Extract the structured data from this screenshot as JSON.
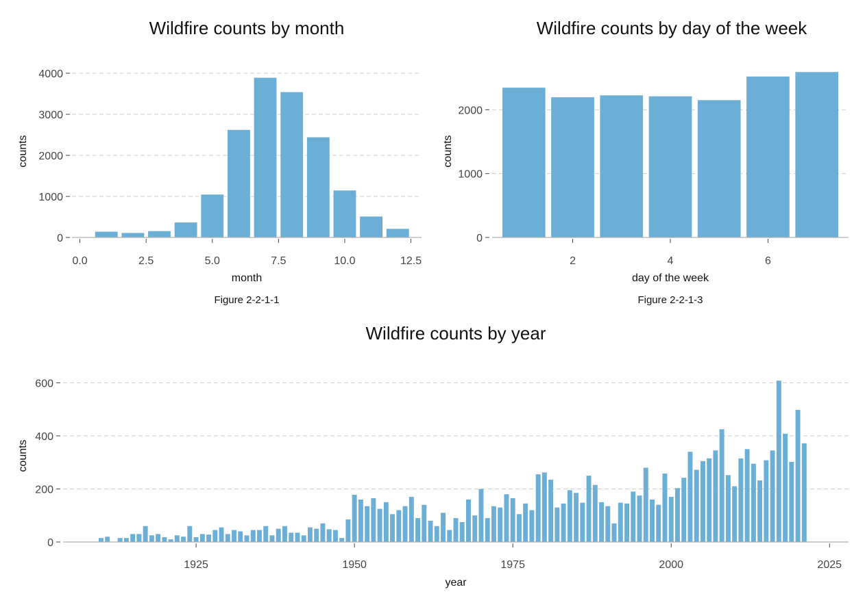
{
  "chart_data": [
    {
      "id": "month",
      "type": "bar",
      "title": "Wildfire counts by month",
      "xlabel": "month",
      "ylabel": "counts",
      "caption": "Figure 2-2-1-1",
      "xlim": [
        -0.3,
        12.9
      ],
      "ylim": [
        0,
        4200
      ],
      "xticks": [
        0,
        2.5,
        5,
        7.5,
        10,
        12.5
      ],
      "xtick_labels": [
        "0.0",
        "2.5",
        "5.0",
        "7.5",
        "10.0",
        "12.5"
      ],
      "yticks": [
        0,
        1000,
        2000,
        3000,
        4000
      ],
      "ytick_labels": [
        "0",
        "1000",
        "2000",
        "3000",
        "4000"
      ],
      "grid": true,
      "x": [
        1,
        2,
        3,
        4,
        5,
        6,
        7,
        8,
        9,
        10,
        11,
        12
      ],
      "values": [
        140,
        110,
        155,
        365,
        1045,
        2620,
        3890,
        3540,
        2440,
        1145,
        510,
        210
      ],
      "bar_width": 0.85,
      "color": "#6baed6"
    },
    {
      "id": "dow",
      "type": "bar",
      "title": "Wildfire counts by day of the week",
      "xlabel": "day of the week",
      "ylabel": "counts",
      "caption": "Figure 2-2-1-3",
      "xlim": [
        0.35,
        7.65
      ],
      "ylim": [
        0,
        2700
      ],
      "xticks": [
        2,
        4,
        6
      ],
      "xtick_labels": [
        "2",
        "4",
        "6"
      ],
      "yticks": [
        0,
        1000,
        2000
      ],
      "ytick_labels": [
        "0",
        "1000",
        "2000"
      ],
      "grid": true,
      "x": [
        1,
        2,
        3,
        4,
        5,
        6,
        7
      ],
      "values": [
        2345,
        2195,
        2225,
        2210,
        2150,
        2520,
        2590
      ],
      "bar_width": 0.88,
      "color": "#6baed6"
    },
    {
      "id": "year",
      "type": "bar",
      "title": "Wildfire counts by year",
      "xlabel": "year",
      "ylabel": "counts",
      "caption": "",
      "xlim": [
        1904,
        2028
      ],
      "ylim": [
        0,
        650
      ],
      "xticks": [
        1925,
        1950,
        1975,
        2000,
        2025
      ],
      "xtick_labels": [
        "1925",
        "1950",
        "1975",
        "2000",
        "2025"
      ],
      "yticks": [
        0,
        200,
        400,
        600
      ],
      "ytick_labels": [
        "0",
        "200",
        "400",
        "600"
      ],
      "grid": true,
      "x_start": 1910,
      "values": [
        15,
        20,
        0,
        15,
        15,
        30,
        30,
        60,
        25,
        30,
        18,
        10,
        25,
        20,
        60,
        18,
        30,
        28,
        45,
        55,
        30,
        45,
        40,
        25,
        45,
        45,
        60,
        25,
        50,
        60,
        35,
        35,
        25,
        55,
        50,
        70,
        48,
        45,
        15,
        85,
        178,
        160,
        135,
        165,
        125,
        150,
        105,
        120,
        135,
        170,
        90,
        140,
        80,
        60,
        110,
        45,
        90,
        75,
        160,
        100,
        200,
        90,
        135,
        130,
        180,
        165,
        105,
        145,
        120,
        255,
        262,
        235,
        130,
        145,
        195,
        185,
        148,
        250,
        215,
        150,
        135,
        70,
        148,
        145,
        190,
        175,
        280,
        160,
        140,
        258,
        170,
        203,
        242,
        340,
        272,
        305,
        315,
        345,
        425,
        252,
        210,
        315,
        350,
        295,
        232,
        308,
        345,
        608,
        408,
        302,
        498,
        372
      ],
      "bar_width": 0.75,
      "color": "#6baed6"
    }
  ]
}
